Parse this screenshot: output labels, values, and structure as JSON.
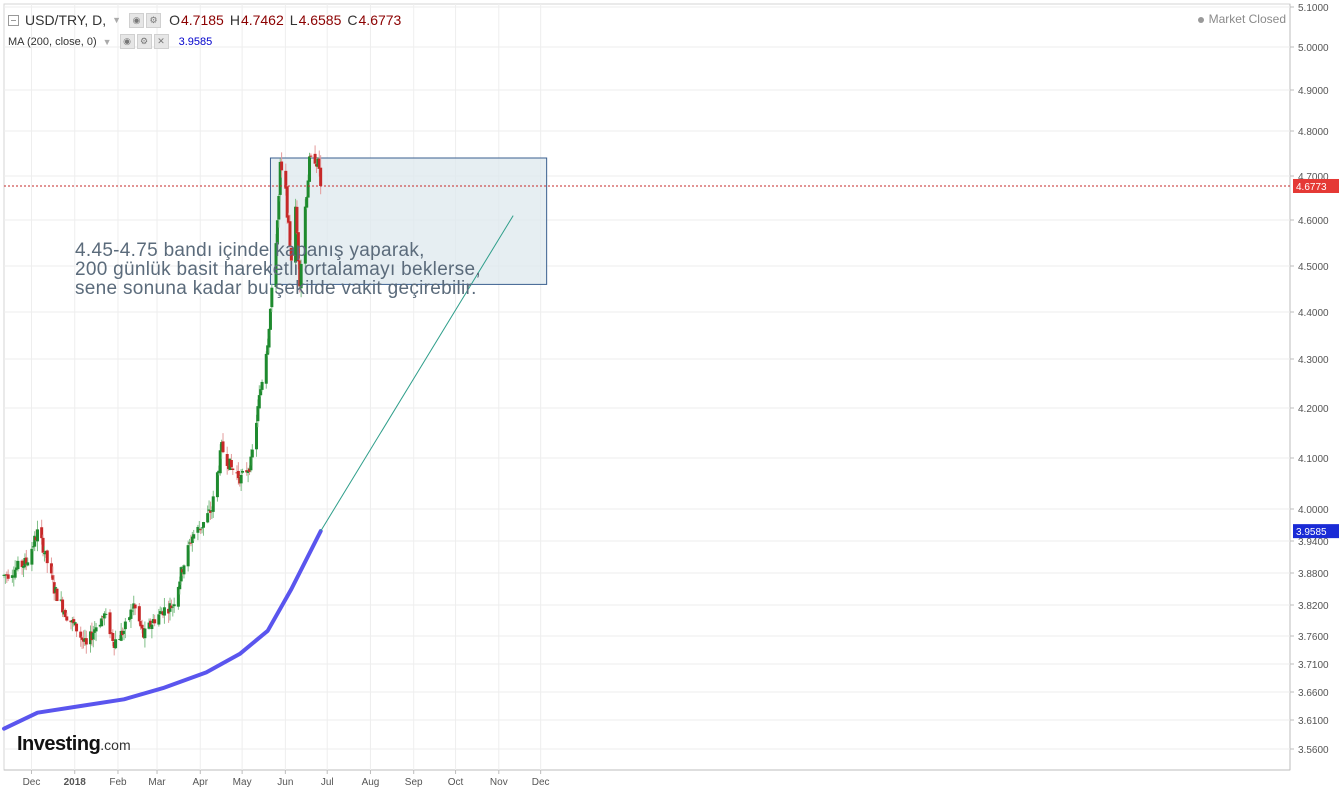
{
  "header": {
    "symbol": "USD/TRY, D,",
    "open_label": "O",
    "open": "4.7185",
    "high_label": "H",
    "high": "4.7462",
    "low_label": "L",
    "low": "4.6585",
    "close_label": "C",
    "close": "4.6773",
    "ma_label": "MA (200, close, 0)",
    "ma_value": "3.9585",
    "market_status": "Market Closed"
  },
  "annotation": {
    "line1": "4.45-4.75 bandı içinde kapanış yaparak,",
    "line2": "200 günlük basit hareketli ortalamayı beklerse,",
    "line3": "sene sonuna kadar bu şekilde vakit geçirebilir."
  },
  "logo": {
    "main": "Investing",
    "suffix": ".com"
  },
  "colors": {
    "up": "#1e8a2e",
    "down": "#c62828",
    "ma": "#5a55ee",
    "projection": "#2e9e8a",
    "box_fill": "#dde8ee",
    "box_border": "#3a5f8f",
    "price_tag": "#e53935",
    "ma_tag": "#1a2bd6"
  },
  "chart_data": {
    "type": "candlestick",
    "symbol": "USD/TRY",
    "yticks": [
      "5.1000",
      "5.0000",
      "4.9000",
      "4.8000",
      "4.7000",
      "4.6000",
      "4.5000",
      "4.4000",
      "4.3000",
      "4.2000",
      "4.1000",
      "4.0000",
      "3.9400",
      "3.8800",
      "3.8200",
      "3.7600",
      "3.7100",
      "3.6600",
      "3.6100",
      "3.5600"
    ],
    "ytick_values": [
      5.1,
      5.0,
      4.9,
      4.8,
      4.7,
      4.6,
      4.5,
      4.4,
      4.3,
      4.2,
      4.1,
      4.0,
      3.94,
      3.88,
      3.82,
      3.76,
      3.71,
      3.66,
      3.61,
      3.56
    ],
    "xticks": [
      {
        "label": "Dec",
        "bold": false
      },
      {
        "label": "2018",
        "bold": true
      },
      {
        "label": "Feb",
        "bold": false
      },
      {
        "label": "Mar",
        "bold": false
      },
      {
        "label": "Apr",
        "bold": false
      },
      {
        "label": "May",
        "bold": false
      },
      {
        "label": "Jun",
        "bold": false
      },
      {
        "label": "Jul",
        "bold": false
      },
      {
        "label": "Aug",
        "bold": false
      },
      {
        "label": "Sep",
        "bold": false
      },
      {
        "label": "Oct",
        "bold": false
      },
      {
        "label": "Nov",
        "bold": false
      },
      {
        "label": "Dec",
        "bold": false
      }
    ],
    "x_range": [
      "2017-11-07",
      "2018-12-03"
    ],
    "close_key_points": [
      [
        "2017-11-07",
        3.875
      ],
      [
        "2017-11-23",
        3.9
      ],
      [
        "2017-12-01",
        3.955
      ],
      [
        "2017-12-05",
        3.93
      ],
      [
        "2017-12-13",
        3.85
      ],
      [
        "2017-12-22",
        3.8
      ],
      [
        "2017-12-30",
        3.77
      ],
      [
        "2018-01-05",
        3.74
      ],
      [
        "2018-01-12",
        3.78
      ],
      [
        "2018-01-18",
        3.8
      ],
      [
        "2018-01-25",
        3.75
      ],
      [
        "2018-02-01",
        3.77
      ],
      [
        "2018-02-08",
        3.82
      ],
      [
        "2018-02-15",
        3.76
      ],
      [
        "2018-02-22",
        3.79
      ],
      [
        "2018-03-01",
        3.81
      ],
      [
        "2018-03-08",
        3.82
      ],
      [
        "2018-03-15",
        3.89
      ],
      [
        "2018-03-22",
        3.95
      ],
      [
        "2018-03-29",
        3.97
      ],
      [
        "2018-04-05",
        4.0
      ],
      [
        "2018-04-12",
        4.12
      ],
      [
        "2018-04-19",
        4.08
      ],
      [
        "2018-04-26",
        4.06
      ],
      [
        "2018-05-03",
        4.09
      ],
      [
        "2018-05-10",
        4.24
      ],
      [
        "2018-05-15",
        4.34
      ],
      [
        "2018-05-18",
        4.44
      ],
      [
        "2018-05-22",
        4.6
      ],
      [
        "2018-05-23",
        4.65
      ],
      [
        "2018-05-24",
        4.72
      ],
      [
        "2018-05-28",
        4.66
      ],
      [
        "2018-05-30",
        4.58
      ],
      [
        "2018-06-01",
        4.52
      ],
      [
        "2018-06-04",
        4.62
      ],
      [
        "2018-06-07",
        4.47
      ],
      [
        "2018-06-11",
        4.63
      ],
      [
        "2018-06-14",
        4.73
      ],
      [
        "2018-06-18",
        4.74
      ],
      [
        "2018-06-21",
        4.7185
      ],
      [
        "2018-06-22",
        4.6773
      ]
    ],
    "last_candle": {
      "date": "2018-06-22",
      "open": 4.7185,
      "high": 4.7462,
      "low": 4.6585,
      "close": 4.6773
    },
    "ma200": {
      "name": "MA (200, close, 0)",
      "points": [
        [
          "2017-11-07",
          3.595
        ],
        [
          "2017-12-01",
          3.623
        ],
        [
          "2018-01-01",
          3.635
        ],
        [
          "2018-02-01",
          3.647
        ],
        [
          "2018-03-01",
          3.667
        ],
        [
          "2018-04-01",
          3.695
        ],
        [
          "2018-04-25",
          3.728
        ],
        [
          "2018-05-15",
          3.77
        ],
        [
          "2018-06-01",
          3.85
        ],
        [
          "2018-06-22",
          3.9585
        ]
      ],
      "last": 3.9585
    },
    "projection_line": {
      "from": [
        "2018-06-22",
        3.9585
      ],
      "to": [
        "2018-11-07",
        4.61
      ]
    },
    "range_box": {
      "x_from": "2018-05-17",
      "x_to": "2018-12-01",
      "y_low": 4.46,
      "y_high": 4.74
    },
    "current_price_line": 4.6773,
    "price_tags": [
      "4.6773",
      "3.9585"
    ]
  }
}
